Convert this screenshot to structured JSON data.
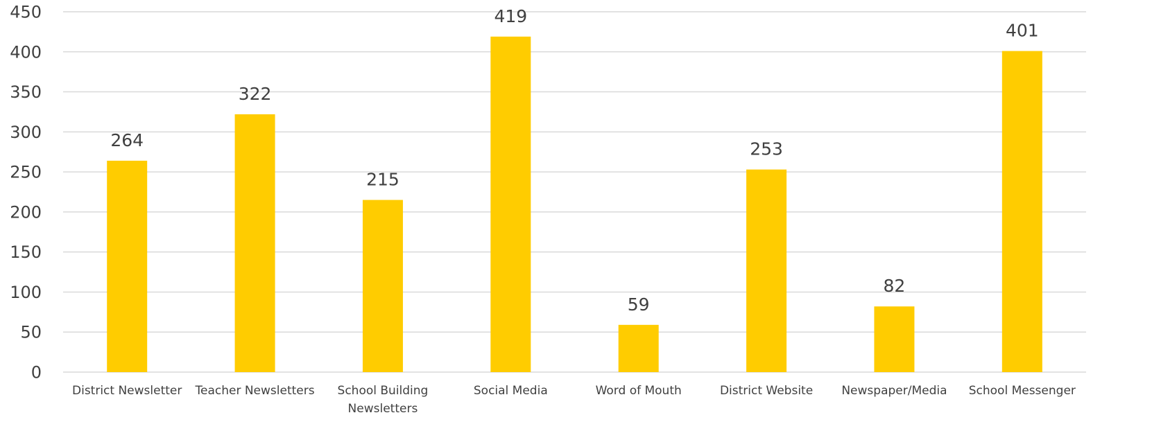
{
  "chart_data": {
    "type": "bar",
    "categories": [
      [
        "District Newsletter"
      ],
      [
        "Teacher Newsletters"
      ],
      [
        "School Building",
        "Newsletters"
      ],
      [
        "Social Media"
      ],
      [
        "Word of Mouth"
      ],
      [
        "District Website"
      ],
      [
        "Newspaper/Media"
      ],
      [
        "School Messenger"
      ]
    ],
    "values": [
      264,
      322,
      215,
      419,
      59,
      253,
      82,
      401
    ],
    "ylim": [
      0,
      450
    ],
    "yticks": [
      0,
      50,
      100,
      150,
      200,
      250,
      300,
      350,
      400,
      450
    ],
    "grid": true,
    "data_labels": true,
    "bar_color": "#FFCC00",
    "title": "",
    "xlabel": "",
    "ylabel": ""
  }
}
